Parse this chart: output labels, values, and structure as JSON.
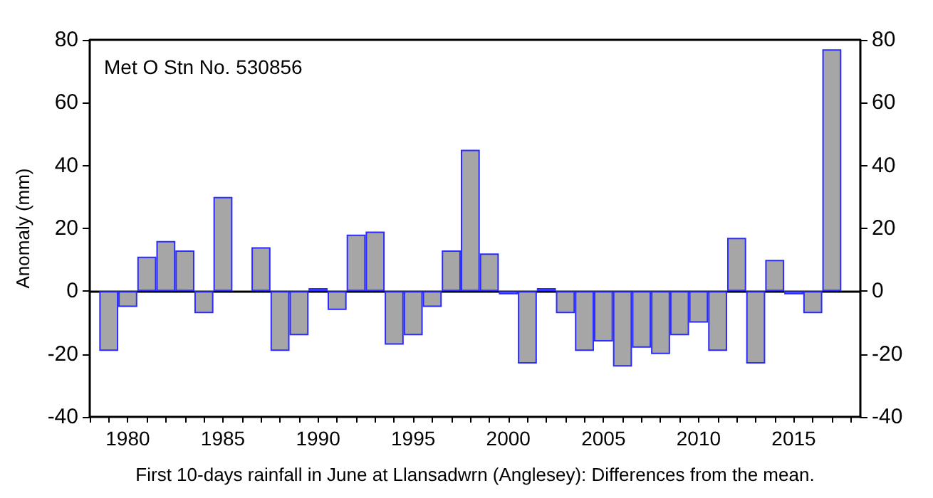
{
  "chart_data": {
    "type": "bar",
    "xlabel": "First 10-days rainfall in June at Llansadwrn (Anglesey): Differences from the mean.",
    "ylabel": "Anomaly (mm)",
    "annotations": [
      "Met O Stn No. 530856"
    ],
    "x": [
      1979,
      1980,
      1981,
      1982,
      1983,
      1984,
      1985,
      1986,
      1987,
      1988,
      1989,
      1990,
      1991,
      1992,
      1993,
      1994,
      1995,
      1996,
      1997,
      1998,
      1999,
      2000,
      2001,
      2002,
      2003,
      2004,
      2005,
      2006,
      2007,
      2008,
      2009,
      2010,
      2011,
      2012,
      2013,
      2014,
      2015,
      2016,
      2017
    ],
    "values": [
      -19,
      -5,
      11,
      16,
      13,
      -7,
      30,
      null,
      14,
      -19,
      -14,
      1,
      -6,
      18,
      19,
      -17,
      -14,
      -5,
      13,
      45,
      12,
      -1,
      -23,
      1,
      -7,
      -19,
      -16,
      -24,
      -18,
      -20,
      -14,
      -10,
      -19,
      17,
      -23,
      10,
      -1,
      -7,
      77
    ],
    "color": "#a6a6a6",
    "xlim": [
      1978,
      2018.5
    ],
    "xticks": [
      {
        "value": 1978,
        "label": null
      },
      {
        "value": 1979,
        "label": null
      },
      1980,
      {
        "value": 1981,
        "label": null
      },
      {
        "value": 1982,
        "label": null
      },
      {
        "value": 1983,
        "label": null
      },
      {
        "value": 1984,
        "label": null
      },
      1985,
      {
        "value": 1986,
        "label": null
      },
      {
        "value": 1987,
        "label": null
      },
      {
        "value": 1988,
        "label": null
      },
      {
        "value": 1989,
        "label": null
      },
      1990,
      {
        "value": 1991,
        "label": null
      },
      {
        "value": 1992,
        "label": null
      },
      {
        "value": 1993,
        "label": null
      },
      {
        "value": 1994,
        "label": null
      },
      1995,
      {
        "value": 1996,
        "label": null
      },
      {
        "value": 1997,
        "label": null
      },
      {
        "value": 1998,
        "label": null
      },
      {
        "value": 1999,
        "label": null
      },
      2000,
      {
        "value": 2001,
        "label": null
      },
      {
        "value": 2002,
        "label": null
      },
      {
        "value": 2003,
        "label": null
      },
      {
        "value": 2004,
        "label": null
      },
      2005,
      {
        "value": 2006,
        "label": null
      },
      {
        "value": 2007,
        "label": null
      },
      {
        "value": 2008,
        "label": null
      },
      {
        "value": 2009,
        "label": null
      },
      2010,
      {
        "value": 2011,
        "label": null
      },
      {
        "value": 2012,
        "label": null
      },
      {
        "value": 2013,
        "label": null
      },
      {
        "value": 2014,
        "label": null
      },
      2015,
      {
        "value": 2016,
        "label": null
      },
      {
        "value": 2017,
        "label": null
      },
      {
        "value": 2018,
        "label": null
      }
    ],
    "ylim": [
      -40,
      80
    ],
    "yticks": [
      -40,
      -20,
      0,
      20,
      40,
      60,
      80
    ],
    "y2lim": [
      -40,
      80
    ],
    "y2ticks": [
      -40,
      -20,
      0,
      20,
      40,
      60,
      80
    ],
    "ref_lines": [
      {
        "axis": "y",
        "value": 0,
        "color": "#000000"
      }
    ],
    "grid": false
  }
}
